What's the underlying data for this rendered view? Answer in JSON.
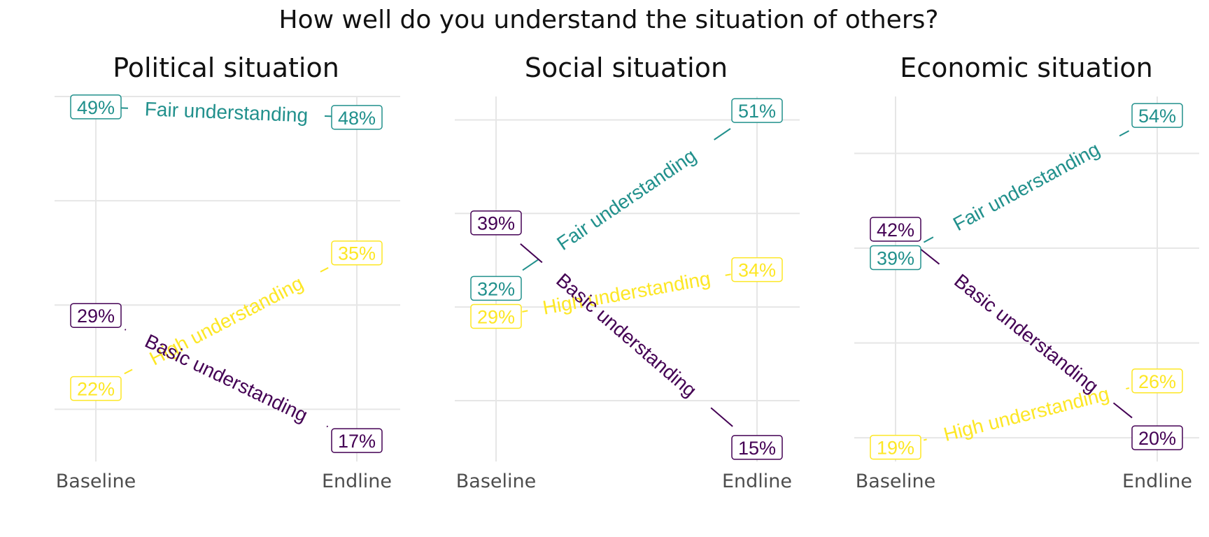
{
  "chart_data": {
    "type": "line",
    "title": "How well do you understand the situation of others?",
    "x_categories": [
      "Baseline",
      "Endline"
    ],
    "colors": {
      "Basic understanding": "#440154",
      "Fair understanding": "#21908c",
      "High understanding": "#fde725"
    },
    "panels": [
      {
        "title": "Political situation",
        "ylim": [
          15,
          50
        ],
        "series": [
          {
            "name": "Fair understanding",
            "values": [
              49,
              48
            ],
            "labels": [
              "49%",
              "48%"
            ]
          },
          {
            "name": "High understanding",
            "values": [
              22,
              35
            ],
            "labels": [
              "22%",
              "35%"
            ]
          },
          {
            "name": "Basic understanding",
            "values": [
              29,
              17
            ],
            "labels": [
              "29%",
              "17%"
            ]
          }
        ]
      },
      {
        "title": "Social situation",
        "ylim": [
          13.5,
          52.5
        ],
        "series": [
          {
            "name": "Fair understanding",
            "values": [
              32,
              51
            ],
            "labels": [
              "32%",
              "51%"
            ]
          },
          {
            "name": "High understanding",
            "values": [
              29,
              34
            ],
            "labels": [
              "29%",
              "34%"
            ]
          },
          {
            "name": "Basic understanding",
            "values": [
              39,
              15
            ],
            "labels": [
              "39%",
              "15%"
            ]
          }
        ]
      },
      {
        "title": "Economic situation",
        "ylim": [
          17.5,
          56
        ],
        "series": [
          {
            "name": "Fair understanding",
            "values": [
              39,
              54
            ],
            "labels": [
              "39%",
              "54%"
            ]
          },
          {
            "name": "High understanding",
            "values": [
              19,
              26
            ],
            "labels": [
              "19%",
              "26%"
            ]
          },
          {
            "name": "Basic understanding",
            "values": [
              42,
              20
            ],
            "labels": [
              "42%",
              "20%"
            ]
          }
        ]
      }
    ]
  }
}
